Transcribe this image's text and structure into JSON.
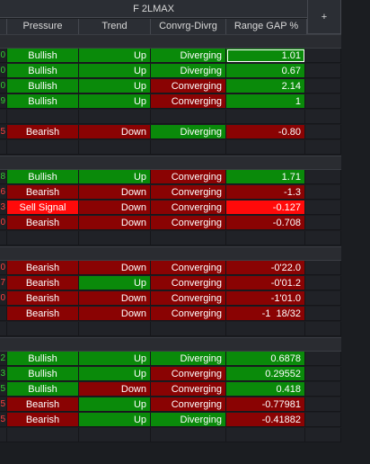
{
  "header": {
    "title": "F 2LMAX",
    "plus_label": "+"
  },
  "columns": [
    "Pressure",
    "Trend",
    "Convrg-Divrg",
    "Range GAP %"
  ],
  "groups": [
    {
      "rows": [
        {
          "stub": "0",
          "pressure": "Bullish",
          "trend": "Up",
          "conv": "Diverging",
          "gap": "1.01"
        },
        {
          "stub": "0",
          "pressure": "Bullish",
          "trend": "Up",
          "conv": "Diverging",
          "gap": "0.67"
        },
        {
          "stub": "0",
          "pressure": "Bullish",
          "trend": "Up",
          "conv": "Converging",
          "gap": "2.14"
        },
        {
          "stub": "9",
          "pressure": "Bullish",
          "trend": "Up",
          "conv": "Converging",
          "gap": "1"
        },
        {
          "blank": true
        },
        {
          "stub": "5",
          "pressure": "Bearish",
          "trend": "Down",
          "conv": "Diverging",
          "gap": "-0.80"
        },
        {
          "blank": true
        }
      ]
    },
    {
      "rows": [
        {
          "stub": "8",
          "pressure": "Bullish",
          "trend": "Up",
          "conv": "Converging",
          "gap": "1.71"
        },
        {
          "stub": "6",
          "pressure": "Bearish",
          "trend": "Down",
          "conv": "Converging",
          "gap": "-1.3"
        },
        {
          "stub": "3",
          "pressure": "Sell Signal",
          "trend": "Down",
          "conv": "Converging",
          "gap": "-0.127"
        },
        {
          "stub": "0",
          "pressure": "Bearish",
          "trend": "Down",
          "conv": "Converging",
          "gap": "-0.708"
        },
        {
          "blank": true
        }
      ]
    },
    {
      "rows": [
        {
          "stub": "0",
          "pressure": "Bearish",
          "trend": "Down",
          "conv": "Converging",
          "gap": "-0'22.0"
        },
        {
          "stub": "7",
          "pressure": "Bearish",
          "trend": "Up",
          "conv": "Converging",
          "gap": "-0'01.2"
        },
        {
          "stub": "0",
          "pressure": "Bearish",
          "trend": "Down",
          "conv": "Converging",
          "gap": "-1'01.0"
        },
        {
          "stub": "",
          "pressure": "Bearish",
          "trend": "Down",
          "conv": "Converging",
          "gap": "-1  18/32"
        },
        {
          "blank": true
        }
      ]
    },
    {
      "rows": [
        {
          "stub": "2",
          "pressure": "Bullish",
          "trend": "Up",
          "conv": "Diverging",
          "gap": "0.6878"
        },
        {
          "stub": "3",
          "pressure": "Bullish",
          "trend": "Up",
          "conv": "Converging",
          "gap": "0.29552"
        },
        {
          "stub": "5",
          "pressure": "Bullish",
          "trend": "Down",
          "conv": "Converging",
          "gap": "0.418"
        },
        {
          "stub": "5",
          "pressure": "Bearish",
          "trend": "Up",
          "conv": "Converging",
          "gap": "-0.77981"
        },
        {
          "stub": "5",
          "pressure": "Bearish",
          "trend": "Up",
          "conv": "Diverging",
          "gap": "-0.41882"
        },
        {
          "blank": true
        }
      ]
    }
  ]
}
